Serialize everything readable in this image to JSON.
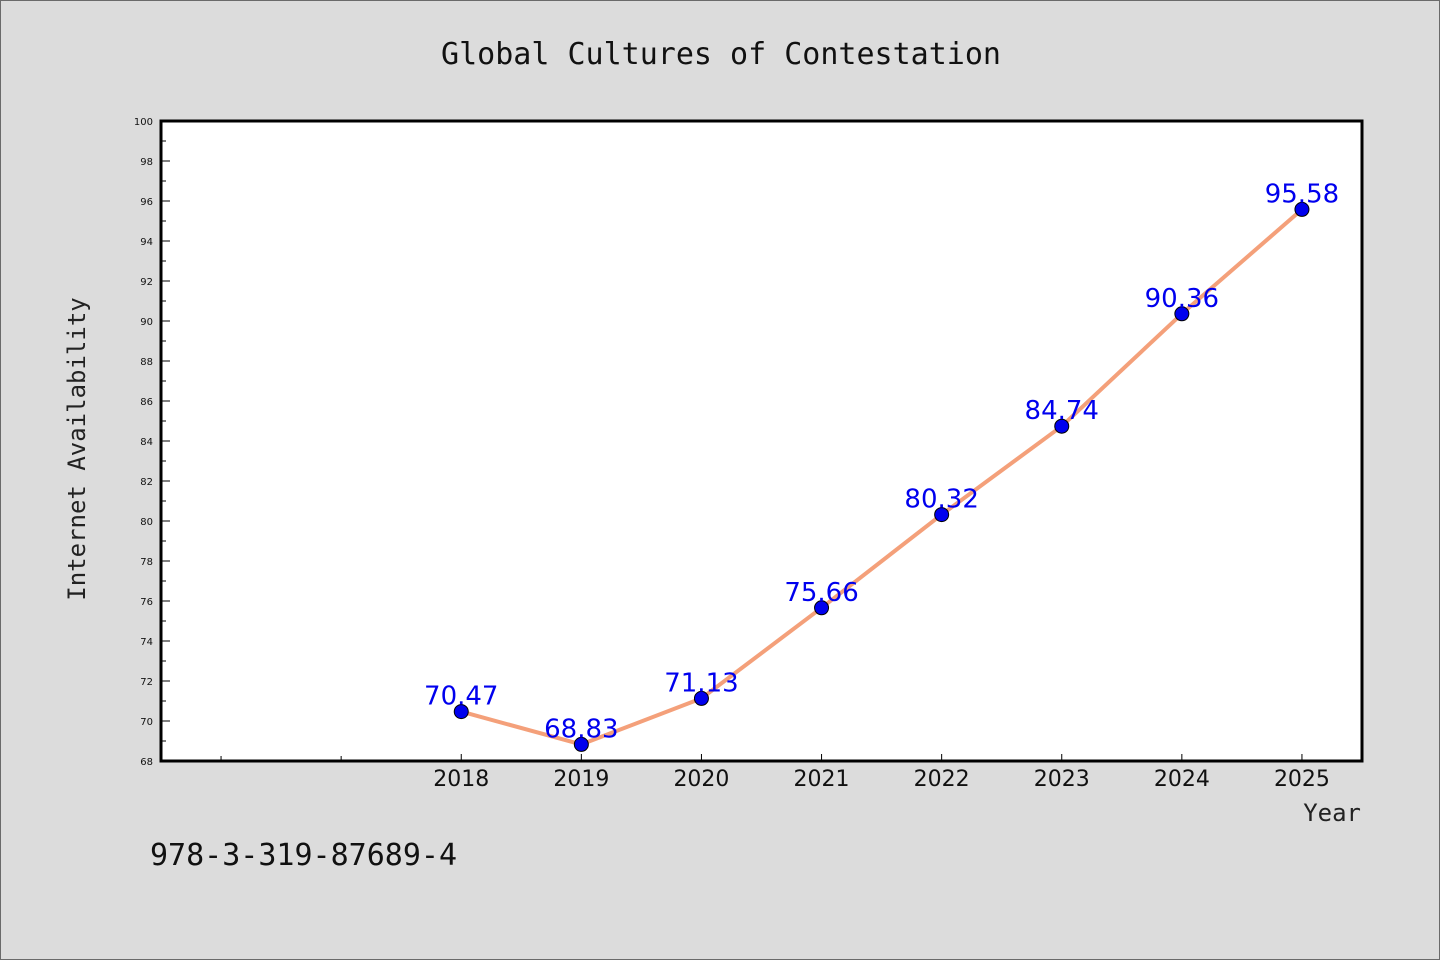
{
  "chart_data": {
    "type": "line",
    "title": "Global Cultures of Contestation",
    "xlabel": "Year",
    "ylabel": "Internet Availability",
    "x": [
      "2018",
      "2019",
      "2020",
      "2021",
      "2022",
      "2023",
      "2024",
      "2025"
    ],
    "series": [
      {
        "values": [
          70.47,
          68.83,
          71.13,
          75.66,
          80.32,
          84.74,
          90.36,
          95.58
        ],
        "data_labels": [
          "70.47",
          "68.83",
          "71.13",
          "75.66",
          "80.32",
          "84.74",
          "90.36",
          "95.58"
        ],
        "line_color": "#f4a07a",
        "marker_color": "#0000ee"
      }
    ],
    "ylim": [
      68,
      100
    ],
    "xlim_index": [
      -2.5,
      7.5
    ],
    "yticks": [
      68,
      70,
      72,
      74,
      76,
      78,
      80,
      82,
      84,
      86,
      88,
      90,
      92,
      94,
      96,
      98,
      100
    ],
    "grid": false,
    "legend": "none"
  },
  "footer": {
    "isbn": "978-3-319-87689-4"
  },
  "colors": {
    "background": "#dcdcdc",
    "plot_area": "#ffffff",
    "line": "#f4a07a",
    "marker": "#0000ee",
    "data_label": "#0000ee"
  }
}
